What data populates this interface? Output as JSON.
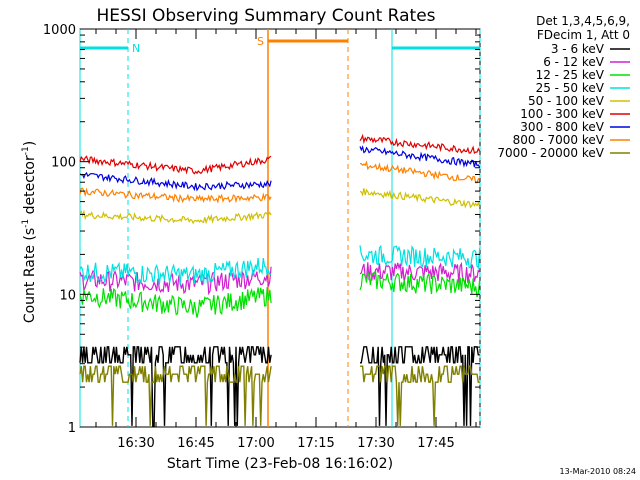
{
  "chart_data": {
    "type": "line",
    "title": "HESSI Observing Summary Count Rates",
    "xlabel": "Start Time (23-Feb-08 16:16:02)",
    "ylabel_main": "Count Rate (s",
    "ylabel_sup1": "-1",
    "ylabel_mid": " detector",
    "ylabel_sup2": "-1",
    "ylabel_end": ")",
    "yscale": "log",
    "xlim": [
      "16:16",
      "17:56"
    ],
    "ylim": [
      1,
      1000
    ],
    "x_ticks": [
      "16:30",
      "16:45",
      "17:00",
      "17:15",
      "17:30",
      "17:45"
    ],
    "y_ticks": [
      "1",
      "10",
      "100",
      "1000"
    ],
    "legend_position": "top-right",
    "legend_header": [
      "Det 1,3,4,5,6,9,",
      "FDecim 1, Att 0"
    ],
    "series": [
      {
        "name": "3 - 6 keV",
        "color": "#000000",
        "x": [
          "16:16",
          "16:45",
          "17:04"
        ],
        "y": [
          3.5,
          3.5,
          3.5
        ],
        "x2": [
          "17:26",
          "17:56"
        ],
        "y2": [
          3.5,
          3.5
        ]
      },
      {
        "name": "6 - 12 keV",
        "color": "#d020d0",
        "x": [
          "16:16",
          "16:45",
          "17:04"
        ],
        "y": [
          13,
          12,
          14
        ],
        "x2": [
          "17:26",
          "17:56"
        ],
        "y2": [
          15,
          14.5
        ]
      },
      {
        "name": "12 - 25 keV",
        "color": "#00e000",
        "x": [
          "16:16",
          "16:45",
          "17:04"
        ],
        "y": [
          10,
          8,
          10
        ],
        "x2": [
          "17:26",
          "17:56"
        ],
        "y2": [
          13,
          11.5
        ]
      },
      {
        "name": "25 - 50 keV",
        "color": "#00e0e0",
        "x": [
          "16:16",
          "16:45",
          "17:04"
        ],
        "y": [
          15,
          14,
          17
        ],
        "x2": [
          "17:26",
          "17:56"
        ],
        "y2": [
          20,
          19
        ]
      },
      {
        "name": "50 - 100 keV",
        "color": "#d0c000",
        "x": [
          "16:16",
          "16:45",
          "17:04"
        ],
        "y": [
          40,
          36,
          40
        ],
        "x2": [
          "17:26",
          "17:56"
        ],
        "y2": [
          60,
          47
        ]
      },
      {
        "name": "100 - 300 keV",
        "color": "#e00000",
        "x": [
          "16:16",
          "16:45",
          "17:04"
        ],
        "y": [
          105,
          85,
          105
        ],
        "x2": [
          "17:26",
          "17:56"
        ],
        "y2": [
          150,
          120
        ]
      },
      {
        "name": "300 - 800 keV",
        "color": "#0000e0",
        "x": [
          "16:16",
          "16:45",
          "17:04"
        ],
        "y": [
          80,
          65,
          68
        ],
        "x2": [
          "17:26",
          "17:56"
        ],
        "y2": [
          125,
          95
        ]
      },
      {
        "name": "800 - 7000 keV",
        "color": "#ff8000",
        "x": [
          "16:16",
          "16:45",
          "17:04"
        ],
        "y": [
          60,
          52,
          54
        ],
        "x2": [
          "17:26",
          "17:56"
        ],
        "y2": [
          95,
          72
        ]
      },
      {
        "name": "7000 - 20000 keV",
        "color": "#808000",
        "x": [
          "16:16",
          "16:45",
          "17:04"
        ],
        "y": [
          2.5,
          2.5,
          2.5
        ],
        "x2": [
          "17:26",
          "17:56"
        ],
        "y2": [
          2.5,
          2.5
        ]
      }
    ],
    "annotations": {
      "night_label": "N",
      "saa_label": "S",
      "night_intervals": [
        [
          "16:16",
          "16:28"
        ],
        [
          "17:34",
          "17:56"
        ]
      ],
      "saa_interval": [
        "17:03",
        "17:23"
      ]
    }
  },
  "footer_date": "13-Mar-2010 08:24"
}
